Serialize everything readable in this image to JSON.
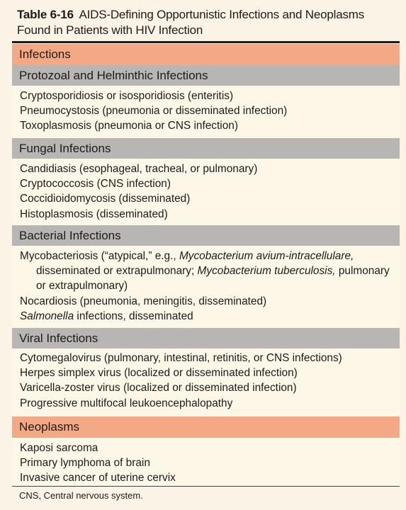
{
  "title": {
    "number": "Table 6-16",
    "text": "AIDS-Defining Opportunistic Infections and Neoplasms Found in Patients with HIV Infection"
  },
  "sections": {
    "infections": "Infections",
    "protozoal": {
      "heading": "Protozoal and Helminthic Infections",
      "items": [
        "Cryptosporidiosis or isosporidiosis (enteritis)",
        "Pneumocystosis (pneumonia or disseminated infection)",
        "Toxoplasmosis (pneumonia or CNS infection)"
      ]
    },
    "fungal": {
      "heading": "Fungal Infections",
      "items": [
        "Candidiasis (esophageal, tracheal, or pulmonary)",
        "Cryptococcosis (CNS infection)",
        "Coccidioidomycosis (disseminated)",
        "Histoplasmosis (disseminated)"
      ]
    },
    "bacterial": {
      "heading": "Bacterial Infections",
      "myco_a": "Mycobacteriosis (“atypical,” e.g., ",
      "myco_b": "Mycobacterium avium-intracellulare,",
      "myco_c": "disseminated or extrapulmonary; ",
      "myco_d": "Mycobacterium tuberculosis,",
      "myco_e": " pulmonary",
      "myco_f": "or extrapulmonary)",
      "nocardiosis": "Nocardiosis (pneumonia, meningitis, disseminated)",
      "salmonella_a": "Salmonella",
      "salmonella_b": " infections, disseminated"
    },
    "viral": {
      "heading": "Viral Infections",
      "items": [
        "Cytomegalovirus (pulmonary, intestinal, retinitis, or CNS infections)",
        "Herpes simplex virus (localized or disseminated infection)",
        "Varicella-zoster virus (localized or disseminated infection)",
        "Progressive multifocal leukoencephalopathy"
      ]
    },
    "neoplasms": {
      "heading": "Neoplasms",
      "items": [
        "Kaposi sarcoma",
        "Primary lymphoma of brain",
        "Invasive cancer of uterine cervix"
      ]
    }
  },
  "footnote": "CNS, Central nervous system.",
  "colors": {
    "salmon_header": "#f3a985",
    "gray_header": "#b8b6b4",
    "paper": "#fbf4e6"
  }
}
